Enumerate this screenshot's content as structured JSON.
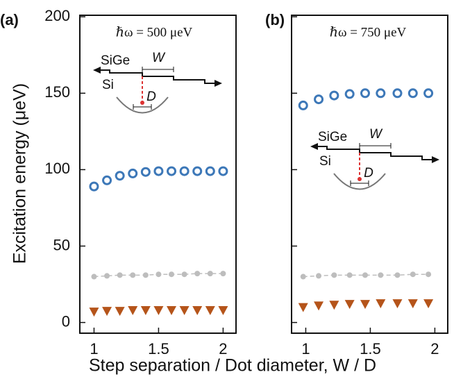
{
  "figure": {
    "xlabel": "Step separation / Dot diameter, W / D",
    "ylabel": "Excitation energy (μeV)"
  },
  "chart_data": [
    {
      "type": "scatter",
      "panel_label": "(a)",
      "note": "ℏω = 500 μeV",
      "inset_labels": [
        "SiGe",
        "Si",
        "W",
        "D"
      ],
      "x": [
        1.0,
        1.1,
        1.2,
        1.3,
        1.4,
        1.5,
        1.6,
        1.7,
        1.8,
        1.9,
        2.0
      ],
      "series": [
        {
          "color": "#3d78b8",
          "marker": "open-circle",
          "line": false,
          "values": [
            89,
            93,
            96,
            97.5,
            98.5,
            99,
            99,
            99,
            99,
            99,
            99
          ]
        },
        {
          "color": "#bdbdbd",
          "marker": "dot",
          "line": true,
          "values": [
            30,
            30.5,
            31,
            31,
            31,
            31.5,
            31.5,
            31.5,
            32,
            32,
            32
          ]
        },
        {
          "color": "#b5541a",
          "marker": "triangle-down",
          "line": false,
          "values": [
            7,
            7.5,
            7.5,
            8,
            8,
            8,
            8,
            8,
            8,
            8,
            8
          ]
        }
      ],
      "xlim": [
        0.89,
        2.1
      ],
      "xticks": [
        1,
        1.5,
        2
      ],
      "ylim": [
        -7,
        201
      ],
      "yticks": [
        0,
        50,
        100,
        150,
        200
      ],
      "ytick_labels": true
    },
    {
      "type": "scatter",
      "panel_label": "(b)",
      "note": "ℏω = 750 μeV",
      "inset_labels": [
        "SiGe",
        "Si",
        "W",
        "D"
      ],
      "x": [
        0.98,
        1.1,
        1.22,
        1.34,
        1.46,
        1.58,
        1.71,
        1.83,
        1.95
      ],
      "series": [
        {
          "color": "#3d78b8",
          "marker": "open-circle",
          "line": false,
          "values": [
            142,
            146,
            148.5,
            149.5,
            150,
            150,
            150,
            150,
            150
          ]
        },
        {
          "color": "#bdbdbd",
          "marker": "dot",
          "line": true,
          "values": [
            30,
            30.5,
            31,
            31,
            31,
            31,
            31,
            31.5,
            31.5
          ]
        },
        {
          "color": "#b5541a",
          "marker": "triangle-down",
          "line": false,
          "values": [
            10,
            11,
            11.5,
            12,
            12,
            12.5,
            12.5,
            12.5,
            12.5
          ]
        }
      ],
      "xlim": [
        0.89,
        2.1
      ],
      "xticks": [
        1,
        1.5,
        2
      ],
      "ylim": [
        -7,
        201
      ],
      "yticks": [
        0,
        50,
        100,
        150,
        200
      ],
      "ytick_labels": false
    }
  ]
}
